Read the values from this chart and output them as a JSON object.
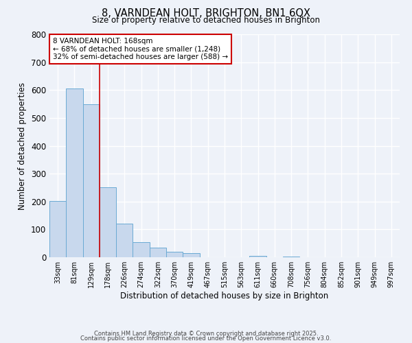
{
  "title": "8, VARNDEAN HOLT, BRIGHTON, BN1 6QX",
  "subtitle": "Size of property relative to detached houses in Brighton",
  "xlabel": "Distribution of detached houses by size in Brighton",
  "ylabel": "Number of detached properties",
  "bin_labels": [
    "33sqm",
    "81sqm",
    "129sqm",
    "178sqm",
    "226sqm",
    "274sqm",
    "322sqm",
    "370sqm",
    "419sqm",
    "467sqm",
    "515sqm",
    "563sqm",
    "611sqm",
    "660sqm",
    "708sqm",
    "756sqm",
    "804sqm",
    "852sqm",
    "901sqm",
    "949sqm",
    "997sqm"
  ],
  "bar_heights": [
    203,
    605,
    548,
    250,
    120,
    55,
    35,
    20,
    15,
    0,
    0,
    0,
    5,
    0,
    3,
    0,
    0,
    0,
    0,
    0,
    0
  ],
  "bar_color": "#c8d8ed",
  "bar_edge_color": "#6aaad4",
  "vline_x_index": 3,
  "vline_color": "#cc0000",
  "ylim": [
    0,
    800
  ],
  "yticks": [
    0,
    100,
    200,
    300,
    400,
    500,
    600,
    700,
    800
  ],
  "annotation_title": "8 VARNDEAN HOLT: 168sqm",
  "annotation_line1": "← 68% of detached houses are smaller (1,248)",
  "annotation_line2": "32% of semi-detached houses are larger (588) →",
  "annotation_box_color": "#ffffff",
  "annotation_box_edge_color": "#cc0000",
  "footer1": "Contains HM Land Registry data © Crown copyright and database right 2025.",
  "footer2": "Contains public sector information licensed under the Open Government Licence v3.0.",
  "background_color": "#eef2f9",
  "grid_color": "#ffffff"
}
